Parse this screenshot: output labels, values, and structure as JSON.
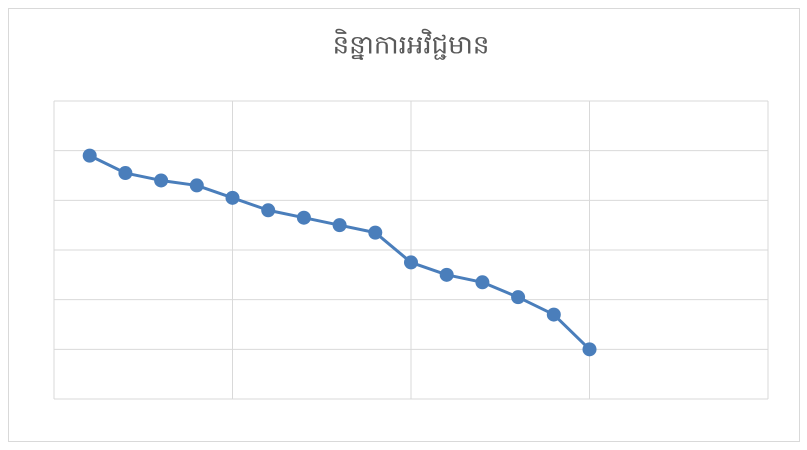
{
  "chart_data": {
    "type": "line",
    "title": "និន្នាការអវិជ្ជមាន",
    "x": [
      0.2,
      0.4,
      0.6,
      0.8,
      1.0,
      1.2,
      1.4,
      1.6,
      1.8,
      2.0,
      2.2,
      2.4,
      2.6,
      2.8,
      3.0
    ],
    "series": [
      {
        "color": "#4a7ebb",
        "values": [
          4.9,
          4.55,
          4.4,
          4.3,
          4.05,
          3.8,
          3.65,
          3.5,
          3.35,
          2.75,
          2.5,
          2.35,
          2.05,
          1.7,
          1.0
        ]
      }
    ],
    "xlim": [
      0,
      4
    ],
    "xticks": [
      0,
      1,
      2,
      3,
      4
    ],
    "ylim": [
      0,
      6
    ],
    "yticks": [
      0,
      1,
      2,
      3,
      4,
      5,
      6
    ],
    "grid": true
  }
}
